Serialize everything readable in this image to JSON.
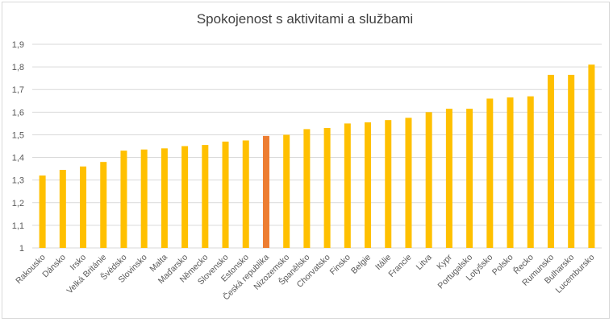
{
  "chart_data": {
    "type": "bar",
    "title": "Spokojenost s aktivitami a službami",
    "xlabel": "",
    "ylabel": "",
    "ylim": [
      1,
      1.9
    ],
    "yticks": [
      "1",
      "1,1",
      "1,2",
      "1,3",
      "1,4",
      "1,5",
      "1,6",
      "1,7",
      "1,8",
      "1,9"
    ],
    "grid": true,
    "legend": "none",
    "bar_color": "#FFC000",
    "highlight_color": "#ED7D31",
    "highlight_category": "Česká republika",
    "categories": [
      "Rakousko",
      "Dánsko",
      "Irsko",
      "Velká Británie",
      "Švédsko",
      "Slovinsko",
      "Malta",
      "Maďarsko",
      "Německo",
      "Slovensko",
      "Estonsko",
      "Česká republika",
      "Nizozemsko",
      "Španělsko",
      "Chorvatsko",
      "Finsko",
      "Belgie",
      "Itálie",
      "Francie",
      "Litva",
      "Kypr",
      "Portugalsko",
      "Lotyšsko",
      "Polsko",
      "Řecko",
      "Rumunsko",
      "Bulharsko",
      "Lucembursko"
    ],
    "values": [
      1.32,
      1.345,
      1.36,
      1.38,
      1.43,
      1.435,
      1.44,
      1.45,
      1.455,
      1.47,
      1.475,
      1.495,
      1.5,
      1.525,
      1.53,
      1.55,
      1.555,
      1.565,
      1.575,
      1.6,
      1.615,
      1.615,
      1.66,
      1.665,
      1.67,
      1.765,
      1.765,
      1.81
    ]
  }
}
